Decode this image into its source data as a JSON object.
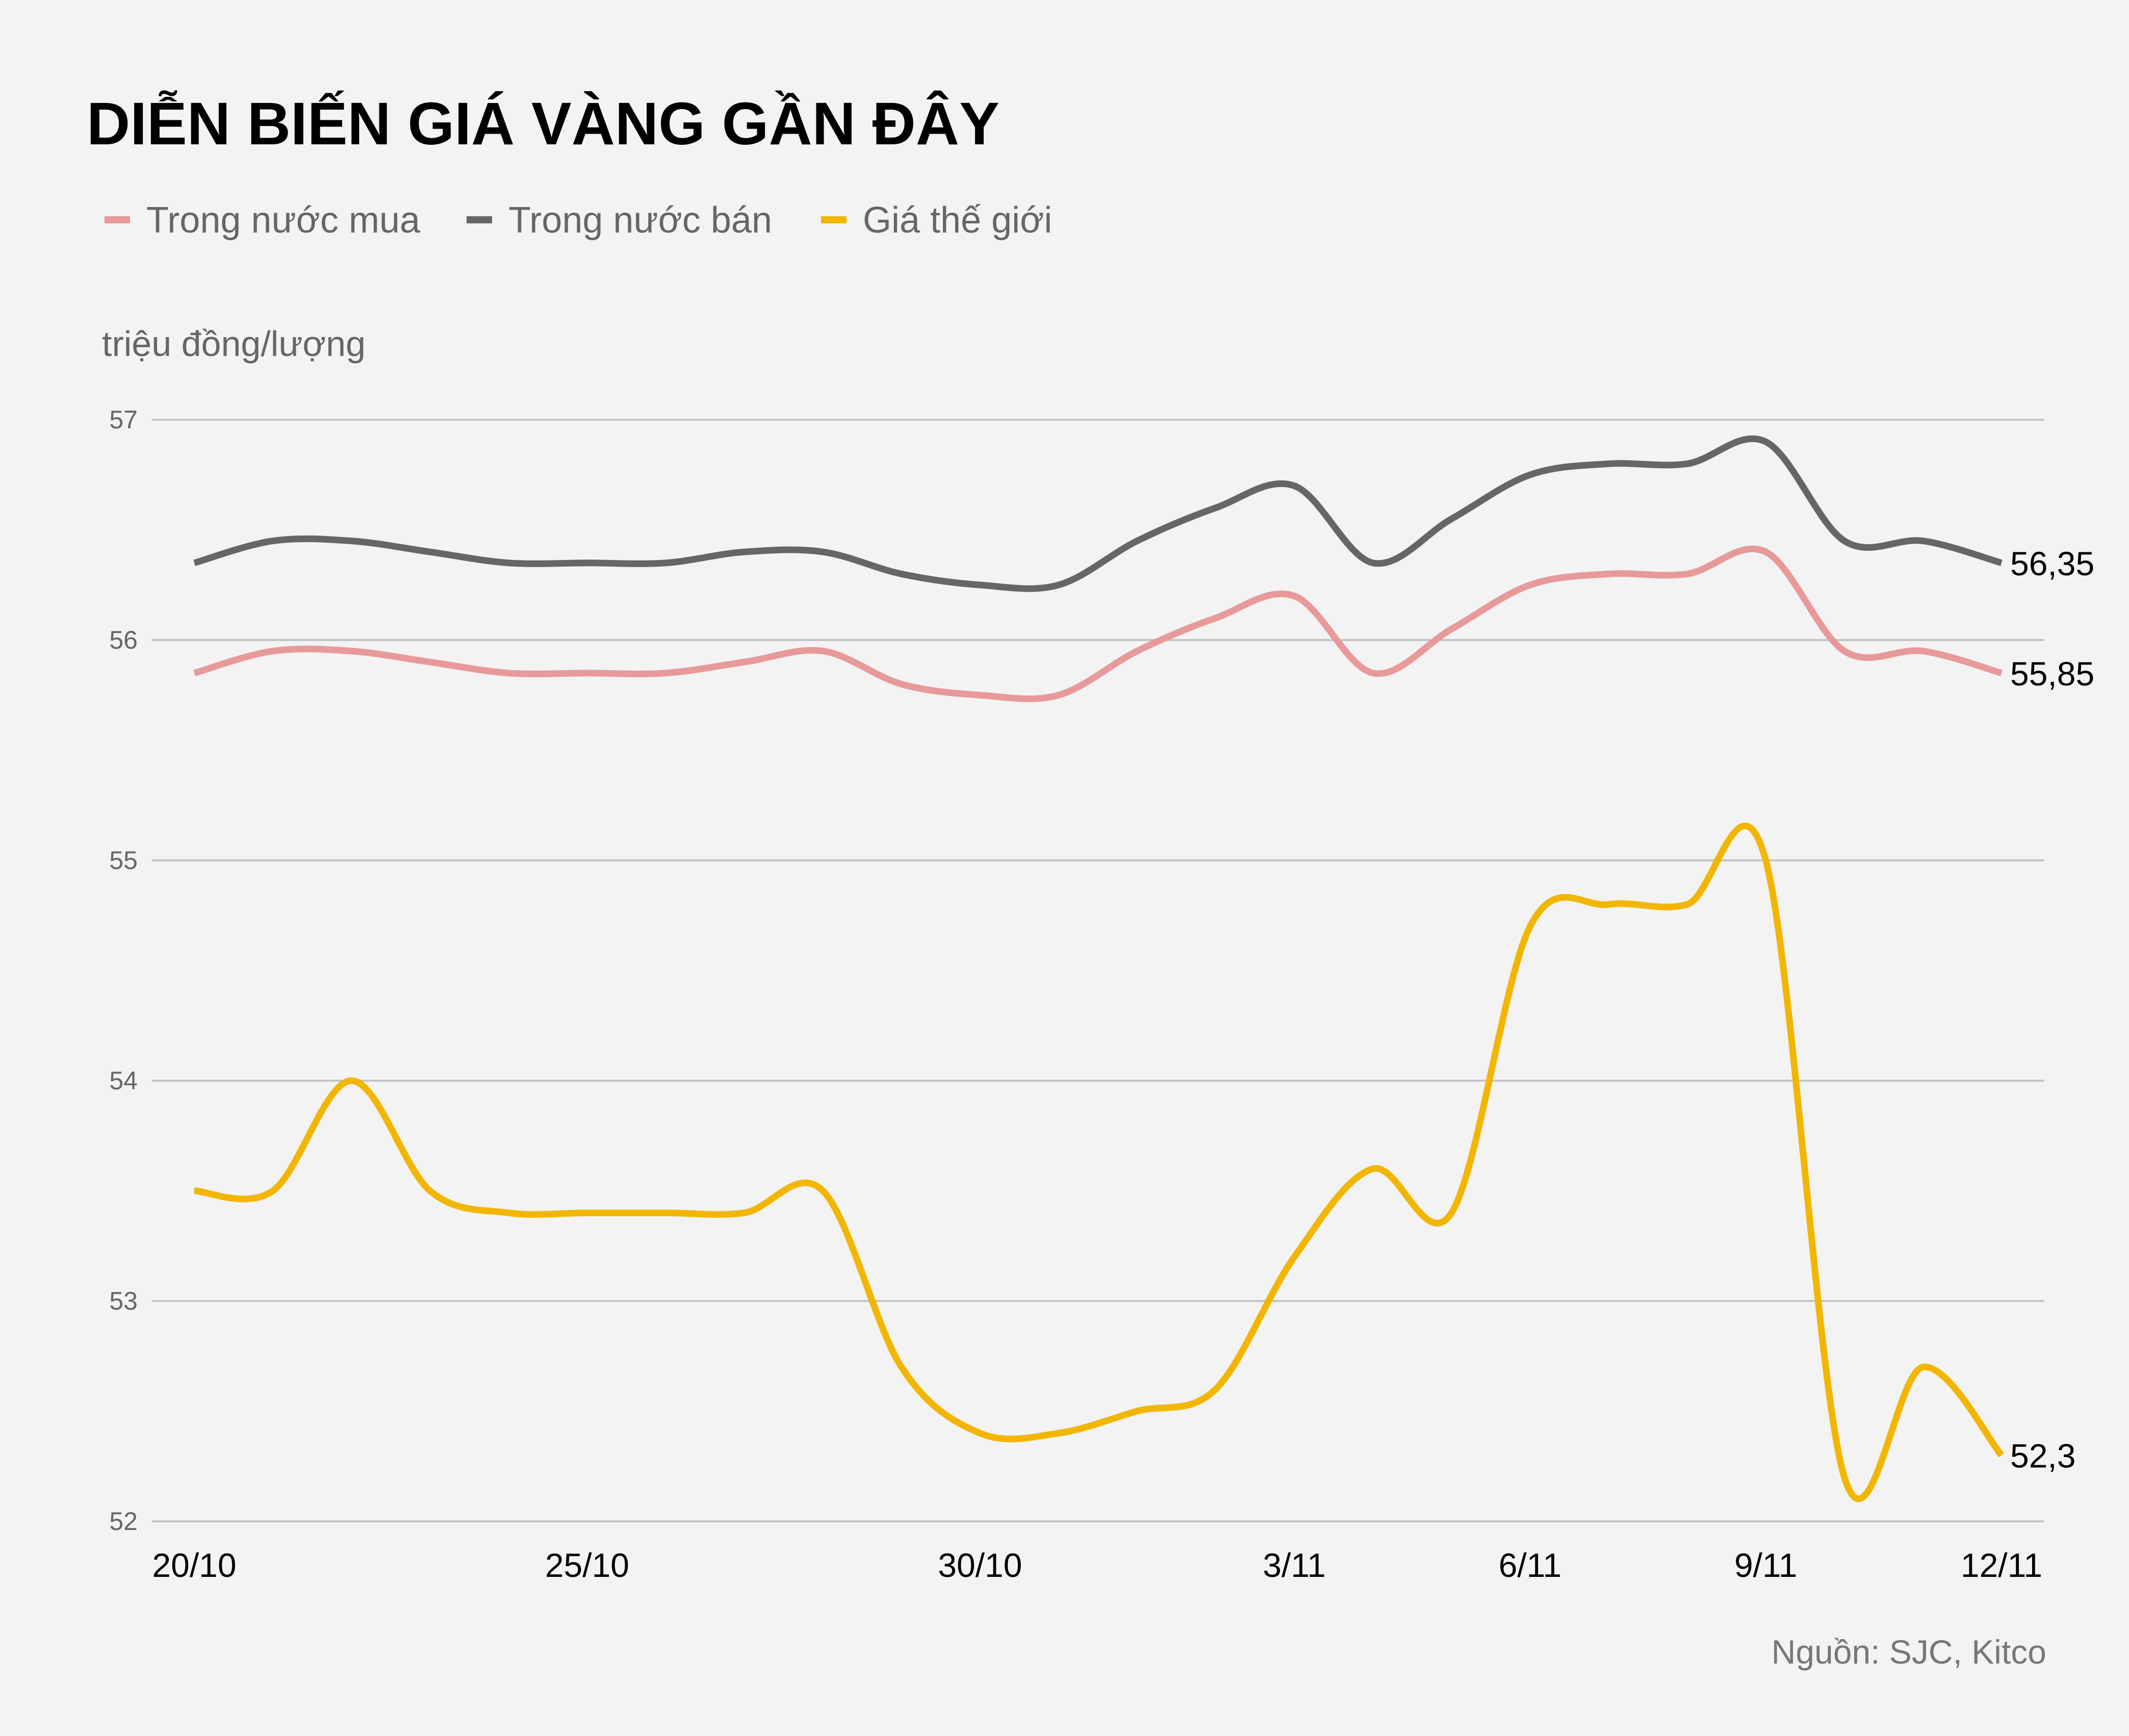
{
  "chart_data": {
    "type": "line",
    "title": "DIỄN BIẾN GIÁ VÀNG GẦN ĐÂY",
    "ylabel": "triệu đồng/lượng",
    "xlabel": "",
    "source": "Nguồn: SJC, Kitco",
    "ylim": [
      52,
      57
    ],
    "yticks": [
      "57",
      "56",
      "55",
      "54",
      "53",
      "52"
    ],
    "xtick_labels": [
      "20/10",
      "25/10",
      "30/10",
      "3/11",
      "6/11",
      "9/11",
      "12/11"
    ],
    "x": [
      "20/10",
      "21/10",
      "22/10",
      "23/10",
      "24/10",
      "25/10",
      "26/10",
      "27/10",
      "28/10",
      "29/10",
      "30/10",
      "31/10",
      "1/11",
      "2/11",
      "3/11",
      "4/11",
      "5/11",
      "6/11",
      "7/11",
      "8/11",
      "9/11",
      "10/11",
      "11/11",
      "12/11"
    ],
    "grid": true,
    "legend_placement": "top-left",
    "series": [
      {
        "name": "Trong nước mua",
        "color": "#e8999a",
        "end_label": "55,85",
        "values": [
          55.85,
          55.95,
          55.95,
          55.9,
          55.85,
          55.85,
          55.85,
          55.9,
          55.95,
          55.8,
          55.75,
          55.75,
          55.95,
          56.1,
          56.2,
          55.85,
          56.05,
          56.25,
          56.3,
          56.3,
          56.4,
          55.95,
          55.95,
          55.85
        ]
      },
      {
        "name": "Trong nước bán",
        "color": "#666666",
        "end_label": "56,35",
        "values": [
          56.35,
          56.45,
          56.45,
          56.4,
          56.35,
          56.35,
          56.35,
          56.4,
          56.4,
          56.3,
          56.25,
          56.25,
          56.45,
          56.6,
          56.7,
          56.35,
          56.55,
          56.75,
          56.8,
          56.8,
          56.9,
          56.45,
          56.45,
          56.35
        ]
      },
      {
        "name": "Giá thế giới",
        "color": "#f2b600",
        "end_label": "52,3",
        "values": [
          53.5,
          53.5,
          54.0,
          53.5,
          53.4,
          53.4,
          53.4,
          53.4,
          53.5,
          52.7,
          52.4,
          52.4,
          52.5,
          52.6,
          53.2,
          53.6,
          53.4,
          54.7,
          54.8,
          54.8,
          55.0,
          52.2,
          52.7,
          52.3
        ]
      }
    ]
  }
}
